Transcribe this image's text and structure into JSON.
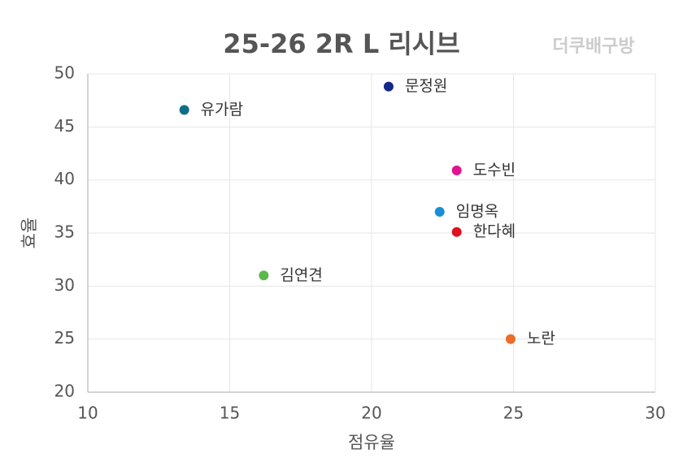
{
  "chart_data": {
    "type": "scatter",
    "title": "25-26  2R L 리시브",
    "watermark": "더쿠배구방",
    "x_label": "점유율",
    "y_label": "효율",
    "xlim": [
      10,
      30
    ],
    "xticks": [
      10,
      15,
      20,
      25,
      30
    ],
    "ylim": [
      20,
      50
    ],
    "yticks": [
      20,
      25,
      30,
      35,
      40,
      45,
      50
    ],
    "grid": true,
    "series": [
      {
        "name": "문정원",
        "color": "#16288a",
        "x": [
          20.6
        ],
        "values": [
          48.8
        ]
      },
      {
        "name": "유가람",
        "color": "#0e6e8a",
        "x": [
          13.4
        ],
        "values": [
          46.6
        ]
      },
      {
        "name": "도수빈",
        "color": "#e0148c",
        "x": [
          23.0
        ],
        "values": [
          40.9
        ]
      },
      {
        "name": "임명옥",
        "color": "#1a8fd6",
        "x": [
          22.4
        ],
        "values": [
          37.0
        ]
      },
      {
        "name": "한다혜",
        "color": "#e0101e",
        "x": [
          23.0
        ],
        "values": [
          35.1
        ]
      },
      {
        "name": "김연견",
        "color": "#5cb84a",
        "x": [
          16.2
        ],
        "values": [
          31.0
        ]
      },
      {
        "name": "노란",
        "color": "#ec6c2a",
        "x": [
          24.9
        ],
        "values": [
          25.0
        ]
      }
    ]
  }
}
